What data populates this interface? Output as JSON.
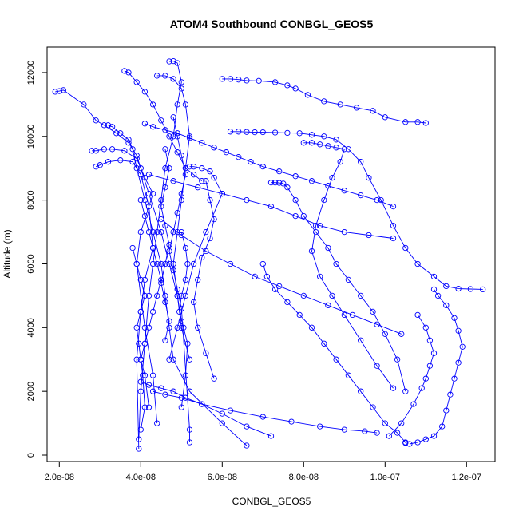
{
  "chart_data": {
    "type": "scatter",
    "title": "ATOM4 Southbound CONBGL_GEOS5",
    "xlabel": "CONBGL_GEOS5",
    "ylabel": "Altitude (m)",
    "xlim": [
      1.7e-08,
      1.27e-07
    ],
    "ylim": [
      -200,
      12800
    ],
    "x_ticks": [
      {
        "value": 2e-08,
        "label": "2.0e-08"
      },
      {
        "value": 4e-08,
        "label": "4.0e-08"
      },
      {
        "value": 6e-08,
        "label": "6.0e-08"
      },
      {
        "value": 8e-08,
        "label": "8.0e-08"
      },
      {
        "value": 1e-07,
        "label": "1.0e-07"
      },
      {
        "value": 1.2e-07,
        "label": "1.2e-07"
      }
    ],
    "y_ticks": [
      {
        "value": 0,
        "label": "0"
      },
      {
        "value": 2000,
        "label": "2000"
      },
      {
        "value": 4000,
        "label": "4000"
      },
      {
        "value": 6000,
        "label": "6000"
      },
      {
        "value": 8000,
        "label": "8000"
      },
      {
        "value": 10000,
        "label": "10000"
      },
      {
        "value": 12000,
        "label": "12000"
      }
    ],
    "marker": "open-circle",
    "connected": true,
    "color": "#0000ff",
    "grid": false,
    "series": [
      {
        "x": [
          1.9e-08,
          2e-08,
          2.1e-08,
          2.6e-08,
          2.9e-08,
          3.1e-08,
          3.4e-08,
          3.7e-08,
          3.9e-08,
          4e-08,
          4.2e-08,
          4.5e-08,
          4.7e-08,
          4.9e-08,
          5e-08
        ],
        "y": [
          11400,
          11420,
          11450,
          11000,
          10500,
          10350,
          10100,
          9800,
          9400,
          9000,
          8200,
          7000,
          6000,
          5000,
          4200
        ]
      },
      {
        "x": [
          3.6e-08,
          3.7e-08,
          3.9e-08,
          4.1e-08,
          4.3e-08,
          4.5e-08,
          4.7e-08,
          4.9e-08,
          5.1e-08,
          5.3e-08,
          5.5e-08
        ],
        "y": [
          12050,
          12000,
          11700,
          11400,
          11000,
          10500,
          10000,
          9500,
          9000,
          8800,
          8600
        ]
      },
      {
        "x": [
          4.7e-08,
          4.8e-08,
          4.9e-08,
          5e-08,
          4.9e-08,
          4.8e-08,
          4.6e-08,
          4.5e-08,
          4.4e-08,
          4.3e-08,
          4.2e-08,
          4.1e-08,
          4e-08,
          3.95e-08
        ],
        "y": [
          12350,
          12360,
          12300,
          11700,
          11000,
          10000,
          9000,
          8000,
          7000,
          6000,
          5000,
          3500,
          2000,
          500
        ]
      },
      {
        "x": [
          4.4e-08,
          4.6e-08,
          4.8e-08,
          5e-08,
          5.1e-08,
          5.2e-08,
          5.1e-08,
          5e-08,
          4.9e-08,
          4.8e-08,
          4.9e-08,
          5e-08,
          5.2e-08
        ],
        "y": [
          11900,
          11900,
          11800,
          11500,
          11000,
          10000,
          9000,
          8000,
          7000,
          6000,
          5000,
          4000,
          3000
        ]
      },
      {
        "x": [
          3.2e-08,
          3.3e-08,
          3.5e-08,
          3.7e-08,
          3.8e-08,
          3.9e-08,
          4.1e-08,
          4.3e-08,
          4.5e-08,
          4.6e-08,
          4.7e-08,
          4.8e-08,
          5.2e-08,
          6e-08,
          6.6e-08
        ],
        "y": [
          10350,
          10300,
          10100,
          9900,
          9600,
          9000,
          8000,
          7000,
          6000,
          5000,
          4000,
          3000,
          2000,
          1000,
          300
        ]
      },
      {
        "x": [
          2.8e-08,
          2.9e-08,
          3.1e-08,
          3.3e-08,
          3.6e-08,
          3.9e-08,
          4.1e-08,
          4.3e-08,
          4e-08,
          3.9e-08,
          4.1e-08,
          4.3e-08,
          4.4e-08
        ],
        "y": [
          9550,
          9550,
          9600,
          9600,
          9550,
          9300,
          8700,
          8200,
          7000,
          6000,
          4000,
          2500,
          1000
        ]
      },
      {
        "x": [
          2.9e-08,
          3e-08,
          3.2e-08,
          3.5e-08,
          3.8e-08,
          4e-08,
          4.2e-08,
          4.3e-08,
          4.1e-08,
          4e-08,
          3.9e-08,
          3.95e-08
        ],
        "y": [
          9050,
          9100,
          9200,
          9250,
          9200,
          8800,
          7800,
          6500,
          5500,
          4500,
          3000,
          200
        ]
      },
      {
        "x": [
          5.2e-08,
          5.3e-08,
          5.5e-08,
          5.7e-08,
          5.8e-08,
          6e-08,
          5.6e-08,
          5.3e-08,
          5.1e-08,
          4.9e-08,
          4.7e-08
        ],
        "y": [
          9050,
          9050,
          9000,
          8900,
          8700,
          8200,
          7000,
          6000,
          5000,
          4000,
          3000
        ]
      },
      {
        "x": [
          6e-08,
          6.2e-08,
          6.4e-08,
          6.6e-08,
          6.9e-08,
          7.3e-08,
          7.6e-08,
          7.8e-08,
          8.1e-08,
          8.5e-08,
          8.9e-08,
          9.3e-08,
          9.7e-08,
          1e-07,
          1.05e-07,
          1.08e-07,
          1.1e-07
        ],
        "y": [
          11800,
          11800,
          11780,
          11750,
          11740,
          11700,
          11600,
          11500,
          11300,
          11100,
          11000,
          10900,
          10800,
          10600,
          10450,
          10450,
          10420
        ]
      },
      {
        "x": [
          6.2e-08,
          6.4e-08,
          6.6e-08,
          6.8e-08,
          7e-08,
          7.3e-08,
          7.6e-08,
          7.9e-08,
          8.2e-08,
          8.5e-08,
          8.8e-08,
          9.1e-08,
          9.4e-08,
          9.6e-08,
          9.9e-08,
          1.02e-07,
          1.05e-07,
          1.08e-07,
          1.12e-07,
          1.15e-07,
          1.18e-07,
          1.21e-07,
          1.24e-07
        ],
        "y": [
          10150,
          10150,
          10140,
          10130,
          10130,
          10120,
          10110,
          10100,
          10050,
          10000,
          9900,
          9600,
          9200,
          8700,
          8000,
          7200,
          6500,
          6000,
          5600,
          5300,
          5220,
          5210,
          5200
        ]
      },
      {
        "x": [
          8e-08,
          8.2e-08,
          8.4e-08,
          8.6e-08,
          8.8e-08,
          9e-08,
          8.9e-08,
          8.7e-08,
          8.5e-08,
          8.3e-08,
          8.2e-08,
          8.4e-08,
          8.7e-08,
          9e-08,
          9.4e-08,
          9.8e-08,
          1.02e-07
        ],
        "y": [
          9800,
          9800,
          9750,
          9700,
          9650,
          9600,
          9200,
          8700,
          8000,
          7200,
          6400,
          5600,
          5000,
          4400,
          3600,
          2800,
          2100
        ]
      },
      {
        "x": [
          7.2e-08,
          7.3e-08,
          7.4e-08,
          7.5e-08,
          7.6e-08,
          7.8e-08,
          8e-08,
          8.3e-08,
          8.6e-08,
          8.8e-08,
          9.1e-08,
          9.4e-08,
          9.7e-08,
          1e-07,
          1.03e-07,
          1.05e-07
        ],
        "y": [
          8550,
          8550,
          8540,
          8520,
          8400,
          8000,
          7500,
          7000,
          6500,
          6000,
          5500,
          5000,
          4500,
          3800,
          3000,
          2000
        ]
      },
      {
        "x": [
          7e-08,
          7.1e-08,
          7.3e-08,
          7.6e-08,
          7.9e-08,
          8.2e-08,
          8.5e-08,
          8.8e-08,
          9.1e-08,
          9.4e-08,
          9.7e-08,
          1e-07,
          1.03e-07,
          1.05e-07,
          1.05e-07
        ],
        "y": [
          6000,
          5600,
          5200,
          4800,
          4400,
          4000,
          3500,
          3000,
          2500,
          2000,
          1500,
          1000,
          700,
          400,
          380
        ]
      },
      {
        "x": [
          1.12e-07,
          1.13e-07,
          1.15e-07,
          1.17e-07,
          1.18e-07,
          1.19e-07,
          1.18e-07,
          1.17e-07,
          1.16e-07,
          1.15e-07,
          1.14e-07,
          1.12e-07,
          1.1e-07,
          1.08e-07,
          1.06e-07
        ],
        "y": [
          5200,
          5000,
          4700,
          4300,
          3900,
          3400,
          2900,
          2400,
          1900,
          1400,
          900,
          600,
          500,
          400,
          350
        ]
      },
      {
        "x": [
          1.08e-07,
          1.1e-07,
          1.11e-07,
          1.12e-07,
          1.11e-07,
          1.1e-07,
          1.09e-07,
          1.07e-07,
          1.04e-07,
          1.01e-07
        ],
        "y": [
          4400,
          4000,
          3600,
          3200,
          2800,
          2400,
          2100,
          1600,
          1000,
          600
        ]
      },
      {
        "x": [
          4.3e-08,
          4.6e-08,
          5e-08,
          5.5e-08,
          6.2e-08,
          7e-08,
          7.7e-08,
          8.4e-08,
          9e-08,
          9.5e-08,
          9.8e-08
        ],
        "y": [
          2000,
          1900,
          1800,
          1600,
          1400,
          1200,
          1050,
          900,
          800,
          750,
          700
        ]
      },
      {
        "x": [
          4e-08,
          4.2e-08,
          4.5e-08,
          4.8e-08,
          5.1e-08,
          5.5e-08,
          6e-08,
          6.6e-08,
          7.2e-08
        ],
        "y": [
          2300,
          2200,
          2100,
          2000,
          1800,
          1600,
          1300,
          900,
          600
        ]
      },
      {
        "x": [
          4.5e-08,
          5e-08,
          5.6e-08,
          6.2e-08,
          6.8e-08,
          7.4e-08,
          8e-08,
          8.6e-08,
          9.2e-08,
          9.8e-08,
          1.04e-07
        ],
        "y": [
          7400,
          6900,
          6400,
          6000,
          5600,
          5300,
          5000,
          4700,
          4400,
          4100,
          3800
        ]
      },
      {
        "x": [
          4.2e-08,
          4.8e-08,
          5.4e-08,
          6e-08,
          6.6e-08,
          7.2e-08,
          7.8e-08,
          8.4e-08,
          9e-08,
          9.6e-08,
          1.02e-07
        ],
        "y": [
          8800,
          8600,
          8400,
          8200,
          8000,
          7800,
          7500,
          7200,
          7000,
          6900,
          6800
        ]
      },
      {
        "x": [
          4e-08,
          4.1e-08,
          4.2e-08,
          4.3e-08,
          4.4e-08,
          4.5e-08,
          4.4e-08,
          4.3e-08,
          4.2e-08,
          4.1e-08,
          4e-08,
          4.1e-08,
          4.2e-08
        ],
        "y": [
          8000,
          7500,
          7000,
          6500,
          6000,
          5500,
          5000,
          4500,
          4000,
          3500,
          3000,
          2500,
          1500
        ]
      },
      {
        "x": [
          4.8e-08,
          4.9e-08,
          5e-08,
          5.1e-08,
          5e-08,
          4.9e-08,
          4.8e-08,
          4.7e-08,
          4.8e-08,
          4.9e-08,
          5e-08,
          5.2e-08,
          5.2e-08
        ],
        "y": [
          10600,
          10000,
          9400,
          8800,
          8200,
          7600,
          7000,
          6400,
          5800,
          5200,
          4600,
          800,
          400
        ]
      },
      {
        "x": [
          5.6e-08,
          5.7e-08,
          5.8e-08,
          5.7e-08,
          5.5e-08,
          5.4e-08,
          5.3e-08,
          5.4e-08,
          5.6e-08,
          5.8e-08
        ],
        "y": [
          8600,
          8000,
          7400,
          6800,
          6200,
          5500,
          4800,
          4000,
          3200,
          2400
        ]
      },
      {
        "x": [
          4.1e-08,
          4.3e-08,
          4.6e-08,
          4.9e-08,
          5.2e-08,
          5.5e-08,
          5.8e-08,
          6.1e-08,
          6.4e-08,
          6.7e-08,
          7e-08,
          7.4e-08,
          7.8e-08,
          8.2e-08,
          8.6e-08,
          9e-08,
          9.4e-08,
          9.8e-08,
          1.02e-07
        ],
        "y": [
          10400,
          10300,
          10200,
          10100,
          9950,
          9800,
          9650,
          9500,
          9350,
          9200,
          9050,
          8900,
          8750,
          8600,
          8450,
          8300,
          8150,
          8000,
          7800
        ]
      },
      {
        "x": [
          3.8e-08,
          3.9e-08,
          4e-08,
          4.1e-08,
          4e-08,
          3.9e-08,
          3.95e-08,
          4e-08,
          4.05e-08,
          4.1e-08,
          4e-08
        ],
        "y": [
          6500,
          6000,
          5500,
          5000,
          4500,
          4000,
          3500,
          3000,
          2500,
          1500,
          800
        ]
      },
      {
        "x": [
          4.6e-08,
          4.7e-08,
          4.6e-08,
          4.5e-08,
          4.6e-08,
          4.7e-08,
          4.6e-08,
          4.5e-08,
          4.6e-08,
          4.7e-08,
          4.6e-08
        ],
        "y": [
          9600,
          9000,
          8400,
          7800,
          7200,
          6600,
          6000,
          5400,
          4800,
          4200,
          3600
        ]
      },
      {
        "x": [
          5e-08,
          5.1e-08,
          5.15e-08,
          5.1e-08,
          5e-08,
          4.95e-08,
          5.05e-08,
          5.15e-08,
          5.1e-08,
          5e-08
        ],
        "y": [
          7000,
          6500,
          6000,
          5500,
          5000,
          4500,
          4000,
          3500,
          2500,
          1500
        ]
      }
    ]
  }
}
